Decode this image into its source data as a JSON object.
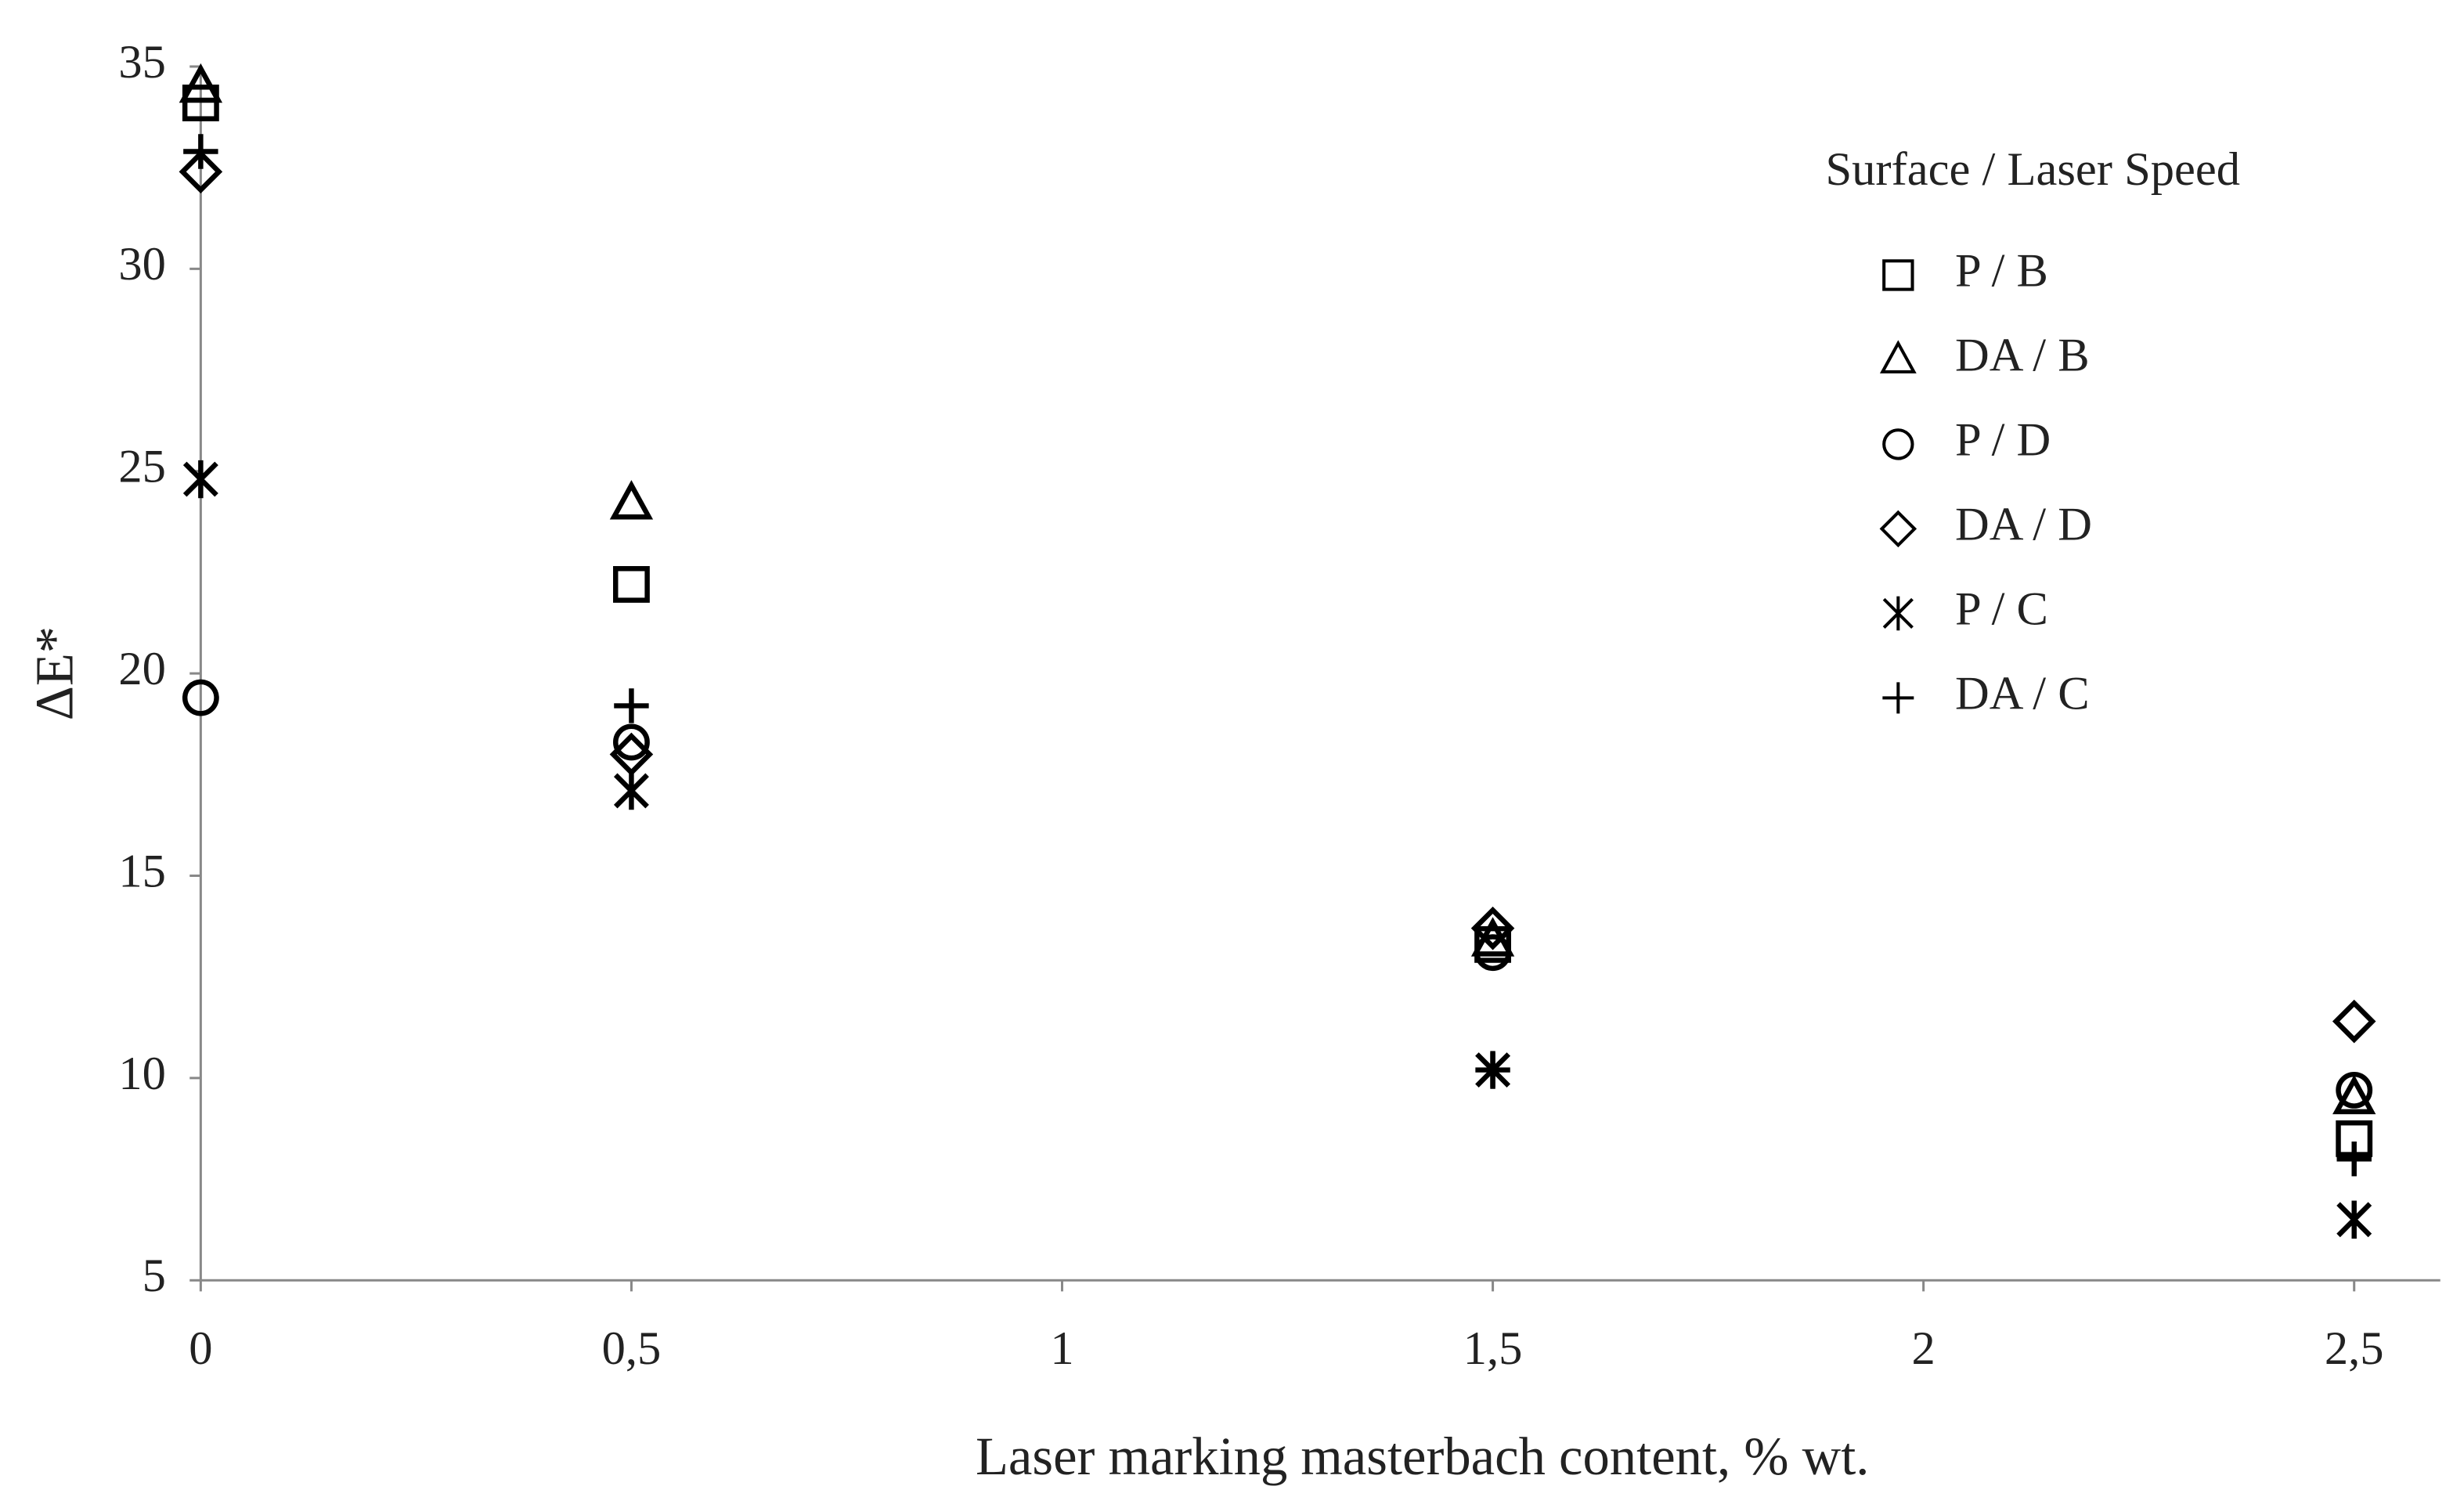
{
  "chart_data": {
    "type": "scatter",
    "x_label": "Laser marking masterbach content,  % wt.",
    "y_label": "ΔE*",
    "legend_title": "Surface / Laser Speed",
    "xlim": [
      0,
      2.6
    ],
    "xticks": [
      0,
      {
        "value": 0.5,
        "label": "0,5"
      },
      1,
      {
        "value": 1.5,
        "label": "1,5"
      },
      2,
      {
        "value": 2.5,
        "label": "2,5"
      }
    ],
    "ylim": [
      5,
      35
    ],
    "yticks": [
      5,
      10,
      15,
      20,
      25,
      30,
      35
    ],
    "grid": false,
    "legend": "top-right",
    "series": [
      {
        "name": "P / B",
        "marker": "square",
        "color": "#000000",
        "x": [
          0,
          0.5,
          1.5,
          2.5
        ],
        "values": [
          34.1,
          22.2,
          13.3,
          8.5
        ]
      },
      {
        "name": "DA / B",
        "marker": "triangle",
        "color": "#000000",
        "x": [
          0,
          0.5,
          1.5,
          2.5
        ],
        "values": [
          34.5,
          24.2,
          13.4,
          9.5
        ]
      },
      {
        "name": "P / D",
        "marker": "circle",
        "color": "#000000",
        "x": [
          0,
          0.5,
          1.5,
          2.5
        ],
        "values": [
          19.4,
          18.3,
          13.1,
          9.7
        ]
      },
      {
        "name": "DA / D",
        "marker": "diamond",
        "color": "#000000",
        "x": [
          0,
          0.5,
          1.5,
          2.5
        ],
        "values": [
          32.4,
          18.0,
          13.7,
          11.4
        ]
      },
      {
        "name": "P / C",
        "marker": "star",
        "color": "#000000",
        "x": [
          0,
          0.5,
          1.5,
          2.5
        ],
        "values": [
          24.8,
          17.1,
          10.2,
          6.5
        ]
      },
      {
        "name": "DA / C",
        "marker": "plus",
        "color": "#000000",
        "x": [
          0,
          0.5,
          1.5,
          2.5
        ],
        "values": [
          32.9,
          19.2,
          10.2,
          8.0
        ]
      }
    ]
  }
}
